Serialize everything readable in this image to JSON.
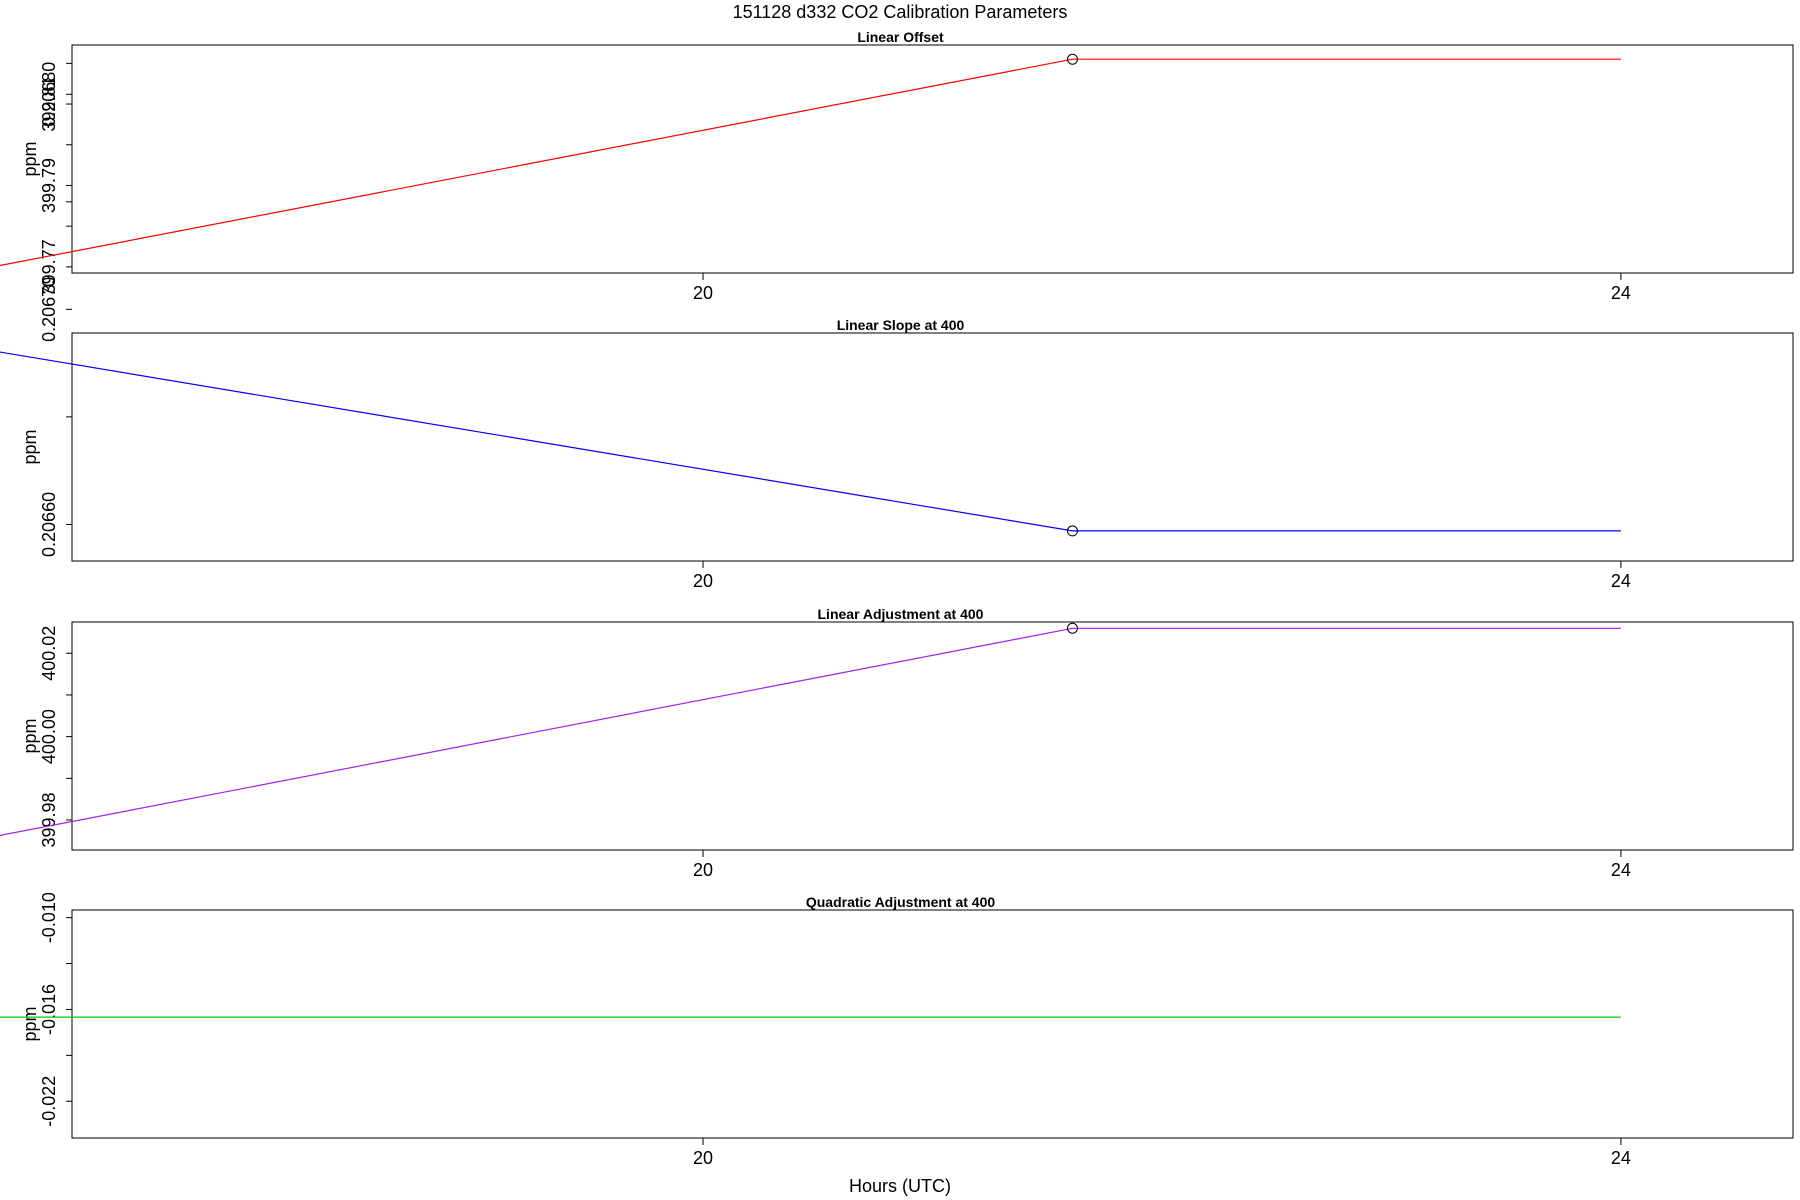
{
  "figure": {
    "title": "151128   d332   CO2 Calibration Parameters",
    "xlabel": "Hours (UTC)"
  },
  "chart_data": [
    {
      "type": "line",
      "title": "Linear Offset",
      "ylabel": "ppm",
      "xlabel": "Hours (UTC)",
      "xlim": [
        17.25,
        24.75
      ],
      "ylim": [
        399.7685,
        399.8245
      ],
      "x_ticks": [
        20,
        24
      ],
      "x_tick_labels": [
        "20",
        "24"
      ],
      "y_ticks": [
        399.77,
        399.78,
        399.79,
        399.8,
        399.81,
        399.82
      ],
      "y_tick_labels": [
        "399.77",
        "",
        "399.79",
        "",
        "399.81",
        ""
      ],
      "color": "#ff0000",
      "line_x": [
        16.5,
        16.72,
        21.61,
        24.0
      ],
      "line_y": [
        399.768,
        399.768,
        399.821,
        399.821
      ],
      "points_x": [
        16.72,
        21.61
      ],
      "points_y": [
        399.768,
        399.821
      ]
    },
    {
      "type": "line",
      "title": "Linear Slope at 400",
      "ylabel": "ppm",
      "xlabel": "Hours (UTC)",
      "xlim": [
        17.25,
        24.75
      ],
      "ylim": [
        0.206583,
        0.206689
      ],
      "x_ticks": [
        20,
        24
      ],
      "x_tick_labels": [
        "20",
        "24"
      ],
      "y_ticks": [
        0.2066,
        0.20665,
        0.2067,
        0.20675,
        0.2068
      ],
      "y_tick_labels": [
        "0.20660",
        "",
        "0.20670",
        "",
        "0.20680"
      ],
      "color": "#0000ff",
      "line_x": [
        16.5,
        16.72,
        21.61,
        24.0
      ],
      "line_y": [
        0.206684,
        0.206684,
        0.206597,
        0.206597
      ],
      "points_x": [
        16.72,
        21.61
      ],
      "points_y": [
        0.206684,
        0.206597
      ]
    },
    {
      "type": "line",
      "title": "Linear Adjustment at 400",
      "ylabel": "ppm",
      "xlabel": "Hours (UTC)",
      "xlim": [
        17.25,
        24.75
      ],
      "ylim": [
        399.9728,
        400.0275
      ],
      "x_ticks": [
        20,
        24
      ],
      "x_tick_labels": [
        "20",
        "24"
      ],
      "y_ticks": [
        399.98,
        399.99,
        400.0,
        400.01,
        400.02
      ],
      "y_tick_labels": [
        "399.98",
        "",
        "400.00",
        "",
        "400.02"
      ],
      "color": "#a020f0",
      "line_x": [
        16.5,
        16.72,
        21.61,
        24.0
      ],
      "line_y": [
        399.974,
        399.974,
        400.026,
        400.026
      ],
      "points_x": [
        16.72,
        21.61
      ],
      "points_y": [
        399.974,
        400.026
      ]
    },
    {
      "type": "line",
      "title": "Quadratic Adjustment at 400",
      "ylabel": "ppm",
      "xlabel": "Hours (UTC)",
      "xlim": [
        17.25,
        24.75
      ],
      "ylim": [
        -0.0244,
        -0.0095
      ],
      "x_ticks": [
        20,
        24
      ],
      "x_tick_labels": [
        "20",
        "24"
      ],
      "y_ticks": [
        -0.01,
        -0.013,
        -0.016,
        -0.019,
        -0.022
      ],
      "y_tick_labels": [
        "-0.010",
        "",
        "-0.016",
        "",
        "-0.022"
      ],
      "color": "#00cd00",
      "line_x": [
        16.5,
        24.0
      ],
      "line_y": [
        -0.0165,
        -0.0165
      ],
      "points_x": [
        16.72
      ],
      "points_y": [
        -0.0165
      ]
    }
  ]
}
